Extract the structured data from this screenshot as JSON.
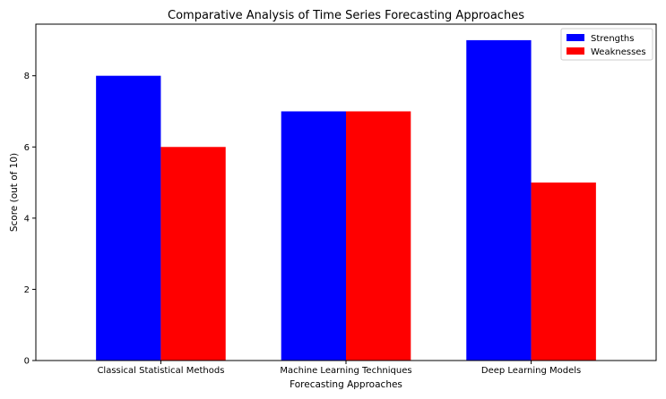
{
  "chart_data": {
    "type": "bar",
    "title": "Comparative Analysis of Time Series Forecasting Approaches",
    "xlabel": "Forecasting Approaches",
    "ylabel": "Score (out of 10)",
    "categories": [
      "Classical Statistical Methods",
      "Machine Learning Techniques",
      "Deep Learning Models"
    ],
    "series": [
      {
        "name": "Strengths",
        "color": "#0000ff",
        "values": [
          8,
          7,
          9
        ]
      },
      {
        "name": "Weaknesses",
        "color": "#ff0000",
        "values": [
          6,
          7,
          5
        ]
      }
    ],
    "ylim": [
      0,
      9.45
    ],
    "yticks": [
      0,
      2,
      4,
      6,
      8
    ],
    "grid": false,
    "legend_position": "top-right"
  }
}
